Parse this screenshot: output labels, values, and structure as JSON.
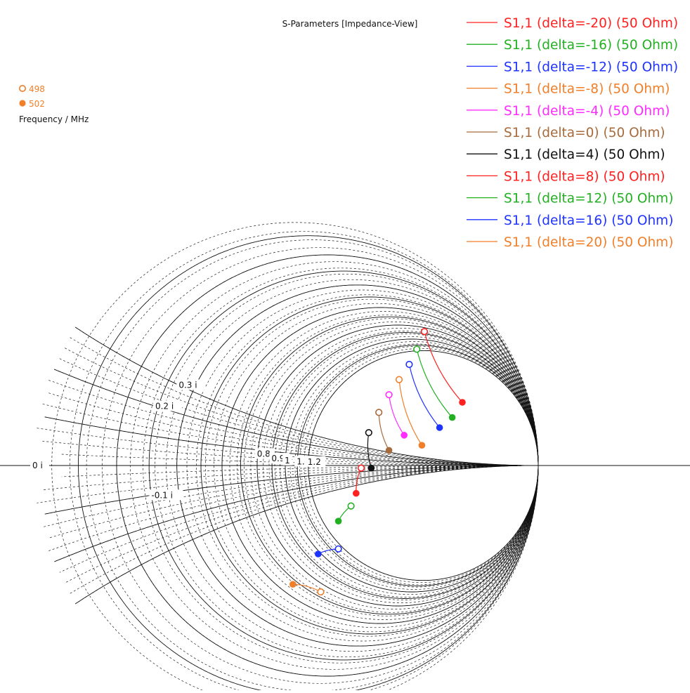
{
  "chart_data": {
    "type": "scatter",
    "title": "S-Parameters [Impedance-View]",
    "view": "smith-chart-impedance-zoomed",
    "grid": true,
    "legend_position": "top-right",
    "frequency_legend": {
      "title": "Frequency / MHz",
      "items": [
        {
          "label": "498",
          "marker": "open-circle",
          "color": "#f07f2a"
        },
        {
          "label": "502",
          "marker": "filled-circle",
          "color": "#f07f2a"
        }
      ]
    },
    "grid_labels": {
      "resistance": [
        "0.8",
        "0.9",
        "1",
        "1.1",
        "1.2"
      ],
      "reactance": [
        "0.3 i",
        "0.2 i",
        "0 i",
        "-0.1 i"
      ]
    },
    "series": [
      {
        "name": "S1,1 (delta=-20) (50 Ohm)",
        "color": "#ff2020",
        "points": [
          {
            "freq": 498,
            "re": 0.55,
            "im": 0.53
          },
          {
            "freq": 502,
            "re": 0.7,
            "im": 0.25
          }
        ]
      },
      {
        "name": "S1,1 (delta=-16) (50 Ohm)",
        "color": "#22b022",
        "points": [
          {
            "freq": 498,
            "re": 0.52,
            "im": 0.46
          },
          {
            "freq": 502,
            "re": 0.66,
            "im": 0.19
          }
        ]
      },
      {
        "name": "S1,1 (delta=-12) (50 Ohm)",
        "color": "#1f33ff",
        "points": [
          {
            "freq": 498,
            "re": 0.49,
            "im": 0.4
          },
          {
            "freq": 502,
            "re": 0.61,
            "im": 0.15
          }
        ]
      },
      {
        "name": "S1,1 (delta=-8) (50 Ohm)",
        "color": "#f07f2a",
        "points": [
          {
            "freq": 498,
            "re": 0.45,
            "im": 0.34
          },
          {
            "freq": 502,
            "re": 0.54,
            "im": 0.08
          }
        ]
      },
      {
        "name": "S1,1 (delta=-4) (50 Ohm)",
        "color": "#ff2bff",
        "points": [
          {
            "freq": 498,
            "re": 0.41,
            "im": 0.28
          },
          {
            "freq": 502,
            "re": 0.47,
            "im": 0.12
          }
        ]
      },
      {
        "name": "S1,1 (delta=0) (50 Ohm)",
        "color": "#a86b3c",
        "points": [
          {
            "freq": 498,
            "re": 0.37,
            "im": 0.21
          },
          {
            "freq": 502,
            "re": 0.41,
            "im": 0.06
          }
        ]
      },
      {
        "name": "S1,1 (delta=4) (50 Ohm)",
        "color": "#101010",
        "points": [
          {
            "freq": 498,
            "re": 0.33,
            "im": 0.13
          },
          {
            "freq": 502,
            "re": 0.34,
            "im": -0.01
          }
        ]
      },
      {
        "name": "S1,1 (delta=8) (50 Ohm)",
        "color": "#ff2020",
        "points": [
          {
            "freq": 498,
            "re": 0.3,
            "im": -0.01
          },
          {
            "freq": 502,
            "re": 0.28,
            "im": -0.11
          }
        ]
      },
      {
        "name": "S1,1 (delta=12) (50 Ohm)",
        "color": "#22b022",
        "points": [
          {
            "freq": 498,
            "re": 0.26,
            "im": -0.16
          },
          {
            "freq": 502,
            "re": 0.21,
            "im": -0.22
          }
        ]
      },
      {
        "name": "S1,1 (delta=16) (50 Ohm)",
        "color": "#1f33ff",
        "points": [
          {
            "freq": 498,
            "re": 0.21,
            "im": -0.33
          },
          {
            "freq": 502,
            "re": 0.13,
            "im": -0.35
          }
        ]
      },
      {
        "name": "S1,1 (delta=20) (50 Ohm)",
        "color": "#f07f2a",
        "points": [
          {
            "freq": 498,
            "re": 0.14,
            "im": -0.5
          },
          {
            "freq": 502,
            "re": 0.03,
            "im": -0.47
          }
        ]
      }
    ]
  }
}
